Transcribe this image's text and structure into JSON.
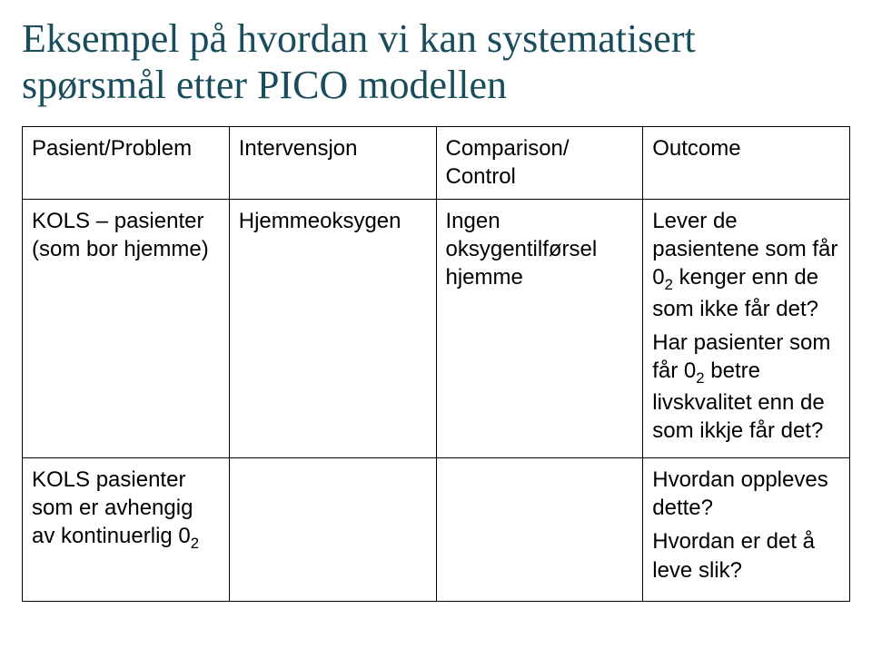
{
  "title_line1": "Eksempel på hvordan vi kan systematisert",
  "title_line2": "spørsmål etter PICO modellen",
  "table": {
    "columns": [
      "Pasient/Problem",
      "Intervensjon",
      "Comparison/ Control",
      "Outcome"
    ],
    "row1": {
      "patient": "KOLS – pasienter (som bor hjemme)",
      "intervention": "Hjemmeoksygen",
      "comparison": "Ingen oksygentilførsel hjemme",
      "outcome1_pre": "Lever de pasientene som får 0",
      "outcome1_sub": "2",
      "outcome1_post": " kenger enn de som ikke får det?",
      "outcome2_pre": "Har pasienter som får 0",
      "outcome2_sub": "2",
      "outcome2_post": " betre livskvalitet enn de som ikkje får det?"
    },
    "row2": {
      "patient_pre": "KOLS pasienter som er avhengig av kontinuerlig 0",
      "patient_sub": "2",
      "outcome3": "Hvordan oppleves dette?",
      "outcome4": "Hvordan er det å leve slik?"
    }
  }
}
